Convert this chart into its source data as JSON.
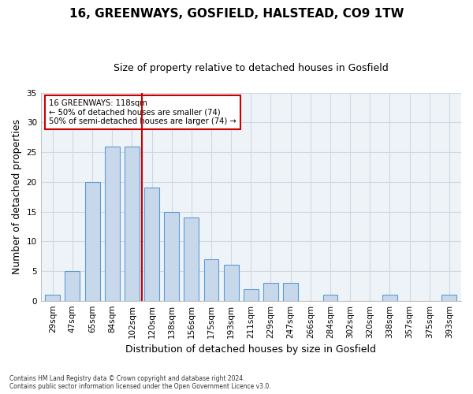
{
  "title": "16, GREENWAYS, GOSFIELD, HALSTEAD, CO9 1TW",
  "subtitle": "Size of property relative to detached houses in Gosfield",
  "xlabel": "Distribution of detached houses by size in Gosfield",
  "ylabel": "Number of detached properties",
  "footer_line1": "Contains HM Land Registry data © Crown copyright and database right 2024.",
  "footer_line2": "Contains public sector information licensed under the Open Government Licence v3.0.",
  "bin_labels": [
    "29sqm",
    "47sqm",
    "65sqm",
    "84sqm",
    "102sqm",
    "120sqm",
    "138sqm",
    "156sqm",
    "175sqm",
    "193sqm",
    "211sqm",
    "229sqm",
    "247sqm",
    "266sqm",
    "284sqm",
    "302sqm",
    "320sqm",
    "338sqm",
    "357sqm",
    "375sqm",
    "393sqm"
  ],
  "bar_values": [
    1,
    5,
    20,
    26,
    26,
    19,
    15,
    14,
    7,
    6,
    2,
    3,
    3,
    0,
    1,
    0,
    0,
    1,
    0,
    0,
    1
  ],
  "bar_color": "#c8d8eb",
  "bar_edge_color": "#5b9bd5",
  "grid_color": "#d0d8e4",
  "background_color": "#ffffff",
  "plot_background_color": "#eef3f8",
  "property_line_color": "#cc0000",
  "annotation_text_line1": "16 GREENWAYS: 118sqm",
  "annotation_text_line2": "← 50% of detached houses are smaller (74)",
  "annotation_text_line3": "50% of semi-detached houses are larger (74) →",
  "annotation_box_color": "#cc0000",
  "annotation_box_fill": "#ffffff",
  "ylim": [
    0,
    35
  ],
  "yticks": [
    0,
    5,
    10,
    15,
    20,
    25,
    30,
    35
  ],
  "property_bin_index": 5,
  "title_fontsize": 11,
  "subtitle_fontsize": 9,
  "tick_fontsize": 7.5,
  "ylabel_fontsize": 9,
  "xlabel_fontsize": 9
}
